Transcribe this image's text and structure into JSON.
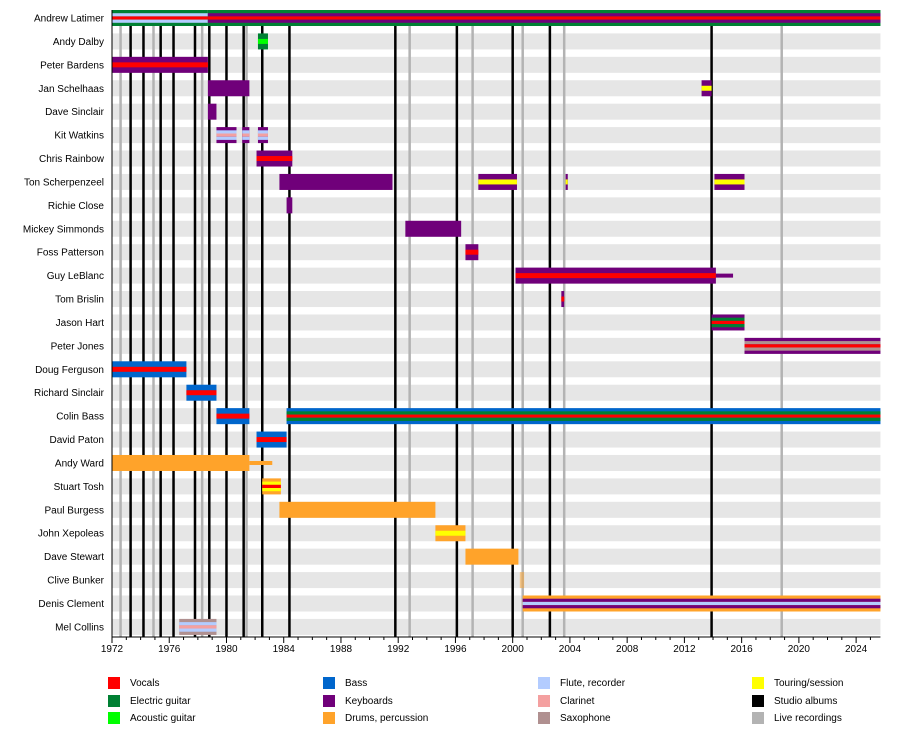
{
  "chart_data": {
    "type": "timeline",
    "xlim": [
      1972,
      2025.7
    ],
    "x_ticks": [
      1972,
      1976,
      1980,
      1984,
      1988,
      1992,
      1996,
      2000,
      2004,
      2008,
      2012,
      2016,
      2020,
      2024
    ],
    "roles": {
      "vocals": {
        "label": "Vocals",
        "color": "#ff0000"
      },
      "electric_guitar": {
        "label": "Electric guitar",
        "color": "#008033"
      },
      "acoustic_guitar": {
        "label": "Acoustic guitar",
        "color": "#00ff00"
      },
      "bass": {
        "label": "Bass",
        "color": "#0066cc"
      },
      "keyboards": {
        "label": "Keyboards",
        "color": "#70007a"
      },
      "drums": {
        "label": "Drums, percussion",
        "color": "#ffa32a"
      },
      "flute": {
        "label": "Flute, recorder",
        "color": "#b3ccff"
      },
      "clarinet": {
        "label": "Clarinet",
        "color": "#f4a0a0"
      },
      "sax": {
        "label": "Saxophone",
        "color": "#b09090"
      },
      "touring": {
        "label": "Touring/session",
        "color": "#ffff00"
      },
      "studio": {
        "label": "Studio albums",
        "color": "#000000"
      },
      "live": {
        "label": "Live recordings",
        "color": "#b3b3b3"
      }
    },
    "legend_order": [
      [
        "vocals",
        "electric_guitar",
        "acoustic_guitar"
      ],
      [
        "bass",
        "keyboards",
        "drums"
      ],
      [
        "flute",
        "clarinet",
        "sax"
      ],
      [
        "touring",
        "studio",
        "live"
      ]
    ],
    "studio_albums": [
      1973.3,
      1974.2,
      1975.4,
      1976.3,
      1977.8,
      1978.8,
      1980.0,
      1981.2,
      1982.5,
      1984.4,
      1991.8,
      1996.1,
      2000.0,
      2002.6,
      2013.9
    ],
    "live_recordings": [
      1972.6,
      1974.9,
      1978.3,
      1981.4,
      1992.8,
      1997.2,
      2000.7,
      2003.6,
      2018.8
    ],
    "members": [
      {
        "name": "Andrew Latimer",
        "bars": [
          {
            "from": 1972,
            "to": 1978.7,
            "main": "electric_guitar",
            "stripes": [
              "flute",
              "vocals",
              "flute"
            ]
          },
          {
            "from": 1978.7,
            "to": 2025.7,
            "main": "electric_guitar",
            "stripes": [
              "keyboards",
              "vocals",
              "keyboards"
            ]
          }
        ]
      },
      {
        "name": "Andy Dalby",
        "bars": [
          {
            "from": 1982.2,
            "to": 1982.9,
            "main": "electric_guitar",
            "stripes": [
              "acoustic_guitar"
            ]
          }
        ]
      },
      {
        "name": "Peter Bardens",
        "bars": [
          {
            "from": 1972,
            "to": 1978.7,
            "main": "keyboards",
            "stripes": [
              "vocals"
            ]
          }
        ]
      },
      {
        "name": "Jan Schelhaas",
        "bars": [
          {
            "from": 1978.7,
            "to": 1981.6,
            "main": "keyboards",
            "stripes": []
          },
          {
            "from": 2013.2,
            "to": 2013.9,
            "main": "keyboards",
            "stripes": [
              "touring"
            ]
          }
        ]
      },
      {
        "name": "Dave Sinclair",
        "bars": [
          {
            "from": 1978.7,
            "to": 1979.3,
            "main": "keyboards",
            "stripes": []
          }
        ]
      },
      {
        "name": "Kit Watkins",
        "bars": [
          {
            "from": 1979.3,
            "to": 1980.7,
            "main": "keyboards",
            "stripes": [
              "flute",
              "clarinet",
              "flute"
            ]
          },
          {
            "from": 1981.1,
            "to": 1981.6,
            "main": "keyboards",
            "stripes": [
              "flute",
              "clarinet",
              "flute"
            ]
          },
          {
            "from": 1982.2,
            "to": 1982.9,
            "main": "keyboards",
            "stripes": [
              "flute",
              "clarinet",
              "flute"
            ]
          }
        ]
      },
      {
        "name": "Chris Rainbow",
        "bars": [
          {
            "from": 1982.1,
            "to": 1984.6,
            "main": "keyboards",
            "stripes": [
              "vocals"
            ]
          }
        ]
      },
      {
        "name": "Ton Scherpenzeel",
        "bars": [
          {
            "from": 1983.7,
            "to": 1991.6,
            "main": "keyboards",
            "stripes": []
          },
          {
            "from": 1997.6,
            "to": 2000.3,
            "main": "keyboards",
            "stripes": [
              "touring"
            ]
          },
          {
            "from": 2003.7,
            "to": 2003.85,
            "main": "keyboards",
            "stripes": [
              "touring"
            ]
          },
          {
            "from": 2014.1,
            "to": 2016.2,
            "main": "keyboards",
            "stripes": [
              "touring"
            ]
          }
        ]
      },
      {
        "name": "Richie Close",
        "bars": [
          {
            "from": 1984.2,
            "to": 1984.6,
            "main": "keyboards",
            "stripes": []
          }
        ]
      },
      {
        "name": "Mickey Simmonds",
        "bars": [
          {
            "from": 1992.5,
            "to": 1996.4,
            "main": "keyboards",
            "stripes": []
          }
        ]
      },
      {
        "name": "Foss Patterson",
        "bars": [
          {
            "from": 1996.7,
            "to": 1997.6,
            "main": "keyboards",
            "stripes": [
              "vocals"
            ]
          }
        ]
      },
      {
        "name": "Guy LeBlanc",
        "bars": [
          {
            "from": 2000.2,
            "to": 2014.2,
            "main": "keyboards",
            "stripes": [
              "vocals"
            ]
          },
          {
            "from": 2014.2,
            "to": 2015.4,
            "main": "keyboards",
            "stripes": [],
            "thin": true
          }
        ]
      },
      {
        "name": "Tom Brislin",
        "bars": [
          {
            "from": 2003.4,
            "to": 2003.6,
            "main": "keyboards",
            "stripes": [
              "vocals"
            ]
          }
        ]
      },
      {
        "name": "Jason Hart",
        "bars": [
          {
            "from": 2013.9,
            "to": 2016.2,
            "main": "keyboards",
            "stripes": [
              "electric_guitar",
              "vocals",
              "electric_guitar"
            ]
          }
        ]
      },
      {
        "name": "Peter Jones",
        "bars": [
          {
            "from": 2016.2,
            "to": 2025.7,
            "main": "keyboards",
            "stripes": [
              "sax",
              "vocals",
              "sax"
            ]
          }
        ]
      },
      {
        "name": "Doug Ferguson",
        "bars": [
          {
            "from": 1972,
            "to": 1977.2,
            "main": "bass",
            "stripes": [
              "vocals"
            ]
          }
        ]
      },
      {
        "name": "Richard Sinclair",
        "bars": [
          {
            "from": 1977.2,
            "to": 1979.3,
            "main": "bass",
            "stripes": [
              "vocals"
            ]
          }
        ]
      },
      {
        "name": "Colin Bass",
        "bars": [
          {
            "from": 1979.3,
            "to": 1981.6,
            "main": "bass",
            "stripes": [
              "vocals"
            ]
          },
          {
            "from": 1984.2,
            "to": 2025.7,
            "main": "bass",
            "stripes": [
              "electric_guitar",
              "vocals",
              "electric_guitar"
            ]
          }
        ]
      },
      {
        "name": "David Paton",
        "bars": [
          {
            "from": 1982.1,
            "to": 1984.2,
            "main": "bass",
            "stripes": [
              "vocals"
            ]
          }
        ]
      },
      {
        "name": "Andy Ward",
        "bars": [
          {
            "from": 1972,
            "to": 1981.6,
            "main": "drums",
            "stripes": []
          },
          {
            "from": 1981.6,
            "to": 1983.2,
            "main": "drums",
            "stripes": [],
            "thin": true
          }
        ]
      },
      {
        "name": "Stuart Tosh",
        "bars": [
          {
            "from": 1982.5,
            "to": 1983.8,
            "main": "drums",
            "stripes": [
              "touring",
              "vocals",
              "touring"
            ]
          }
        ]
      },
      {
        "name": "Paul Burgess",
        "bars": [
          {
            "from": 1983.7,
            "to": 1994.6,
            "main": "drums",
            "stripes": []
          }
        ]
      },
      {
        "name": "John Xepoleas",
        "bars": [
          {
            "from": 1994.6,
            "to": 1996.7,
            "main": "drums",
            "stripes": [
              "touring"
            ]
          }
        ]
      },
      {
        "name": "Dave Stewart",
        "bars": [
          {
            "from": 1996.7,
            "to": 2000.4,
            "main": "drums",
            "stripes": []
          }
        ]
      },
      {
        "name": "Clive Bunker",
        "bars": [
          {
            "from": 2000.5,
            "to": 2000.8,
            "main": "drums",
            "stripes": [],
            "faint": true
          }
        ]
      },
      {
        "name": "Denis Clement",
        "bars": [
          {
            "from": 2000.7,
            "to": 2025.7,
            "main": "drums",
            "stripes": [
              "keyboards",
              "flute",
              "keyboards"
            ]
          }
        ]
      },
      {
        "name": "Mel Collins",
        "bars": [
          {
            "from": 1976.7,
            "to": 1979.3,
            "main": "sax",
            "stripes": [
              "flute",
              "clarinet",
              "flute"
            ]
          }
        ]
      }
    ]
  }
}
